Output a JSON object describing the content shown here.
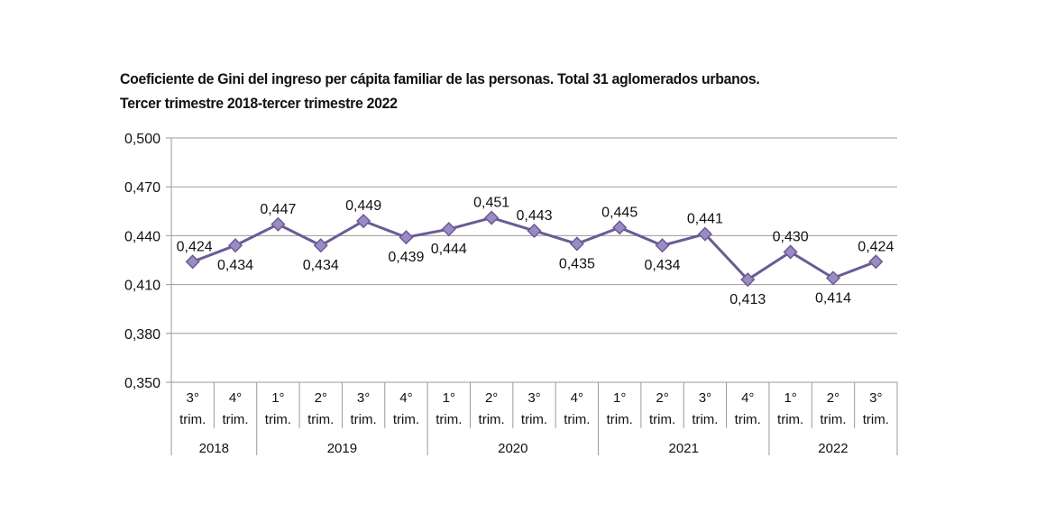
{
  "chart_data": {
    "type": "line",
    "title": "Coeficiente de Gini del ingreso per cápita familiar de las personas. Total 31 aglomerados urbanos.",
    "subtitle": "Tercer trimestre 2018-tercer trimestre 2022",
    "categories": [
      {
        "q": "3°",
        "t": "trim.",
        "year": "2018"
      },
      {
        "q": "4°",
        "t": "trim.",
        "year": "2018"
      },
      {
        "q": "1°",
        "t": "trim.",
        "year": "2019"
      },
      {
        "q": "2°",
        "t": "trim.",
        "year": "2019"
      },
      {
        "q": "3°",
        "t": "trim.",
        "year": "2019"
      },
      {
        "q": "4°",
        "t": "trim.",
        "year": "2019"
      },
      {
        "q": "1°",
        "t": "trim.",
        "year": "2020"
      },
      {
        "q": "2°",
        "t": "trim.",
        "year": "2020"
      },
      {
        "q": "3°",
        "t": "trim.",
        "year": "2020"
      },
      {
        "q": "4°",
        "t": "trim.",
        "year": "2020"
      },
      {
        "q": "1°",
        "t": "trim.",
        "year": "2021"
      },
      {
        "q": "2°",
        "t": "trim.",
        "year": "2021"
      },
      {
        "q": "3°",
        "t": "trim.",
        "year": "2021"
      },
      {
        "q": "4°",
        "t": "trim.",
        "year": "2021"
      },
      {
        "q": "1°",
        "t": "trim.",
        "year": "2022"
      },
      {
        "q": "2°",
        "t": "trim.",
        "year": "2022"
      },
      {
        "q": "3°",
        "t": "trim.",
        "year": "2022"
      }
    ],
    "years": [
      "2018",
      "2019",
      "2020",
      "2021",
      "2022"
    ],
    "values": [
      0.424,
      0.434,
      0.447,
      0.434,
      0.449,
      0.439,
      0.444,
      0.451,
      0.443,
      0.435,
      0.445,
      0.434,
      0.441,
      0.413,
      0.43,
      0.414,
      0.424
    ],
    "data_labels": [
      "0,424",
      "0,434",
      "0,447",
      "0,434",
      "0,449",
      "0,439",
      "0,444",
      "0,451",
      "0,443",
      "0,435",
      "0,445",
      "0,434",
      "0,441",
      "0,413",
      "0,430",
      "0,414",
      "0,424"
    ],
    "label_positions": [
      "above",
      "below",
      "above",
      "below",
      "above",
      "below",
      "below",
      "above",
      "above",
      "below",
      "above",
      "below",
      "above",
      "below",
      "above",
      "below",
      "above"
    ],
    "ylim": [
      0.35,
      0.5
    ],
    "yticks": [
      "0,350",
      "0,380",
      "0,410",
      "0,440",
      "0,470",
      "0,500"
    ],
    "ytick_values": [
      0.35,
      0.38,
      0.41,
      0.44,
      0.47,
      0.5
    ],
    "grid": true,
    "legend": "none",
    "colors": {
      "line": "#6b5b95",
      "marker": "#9a8cc2",
      "grid": "#9a9a9a"
    }
  }
}
